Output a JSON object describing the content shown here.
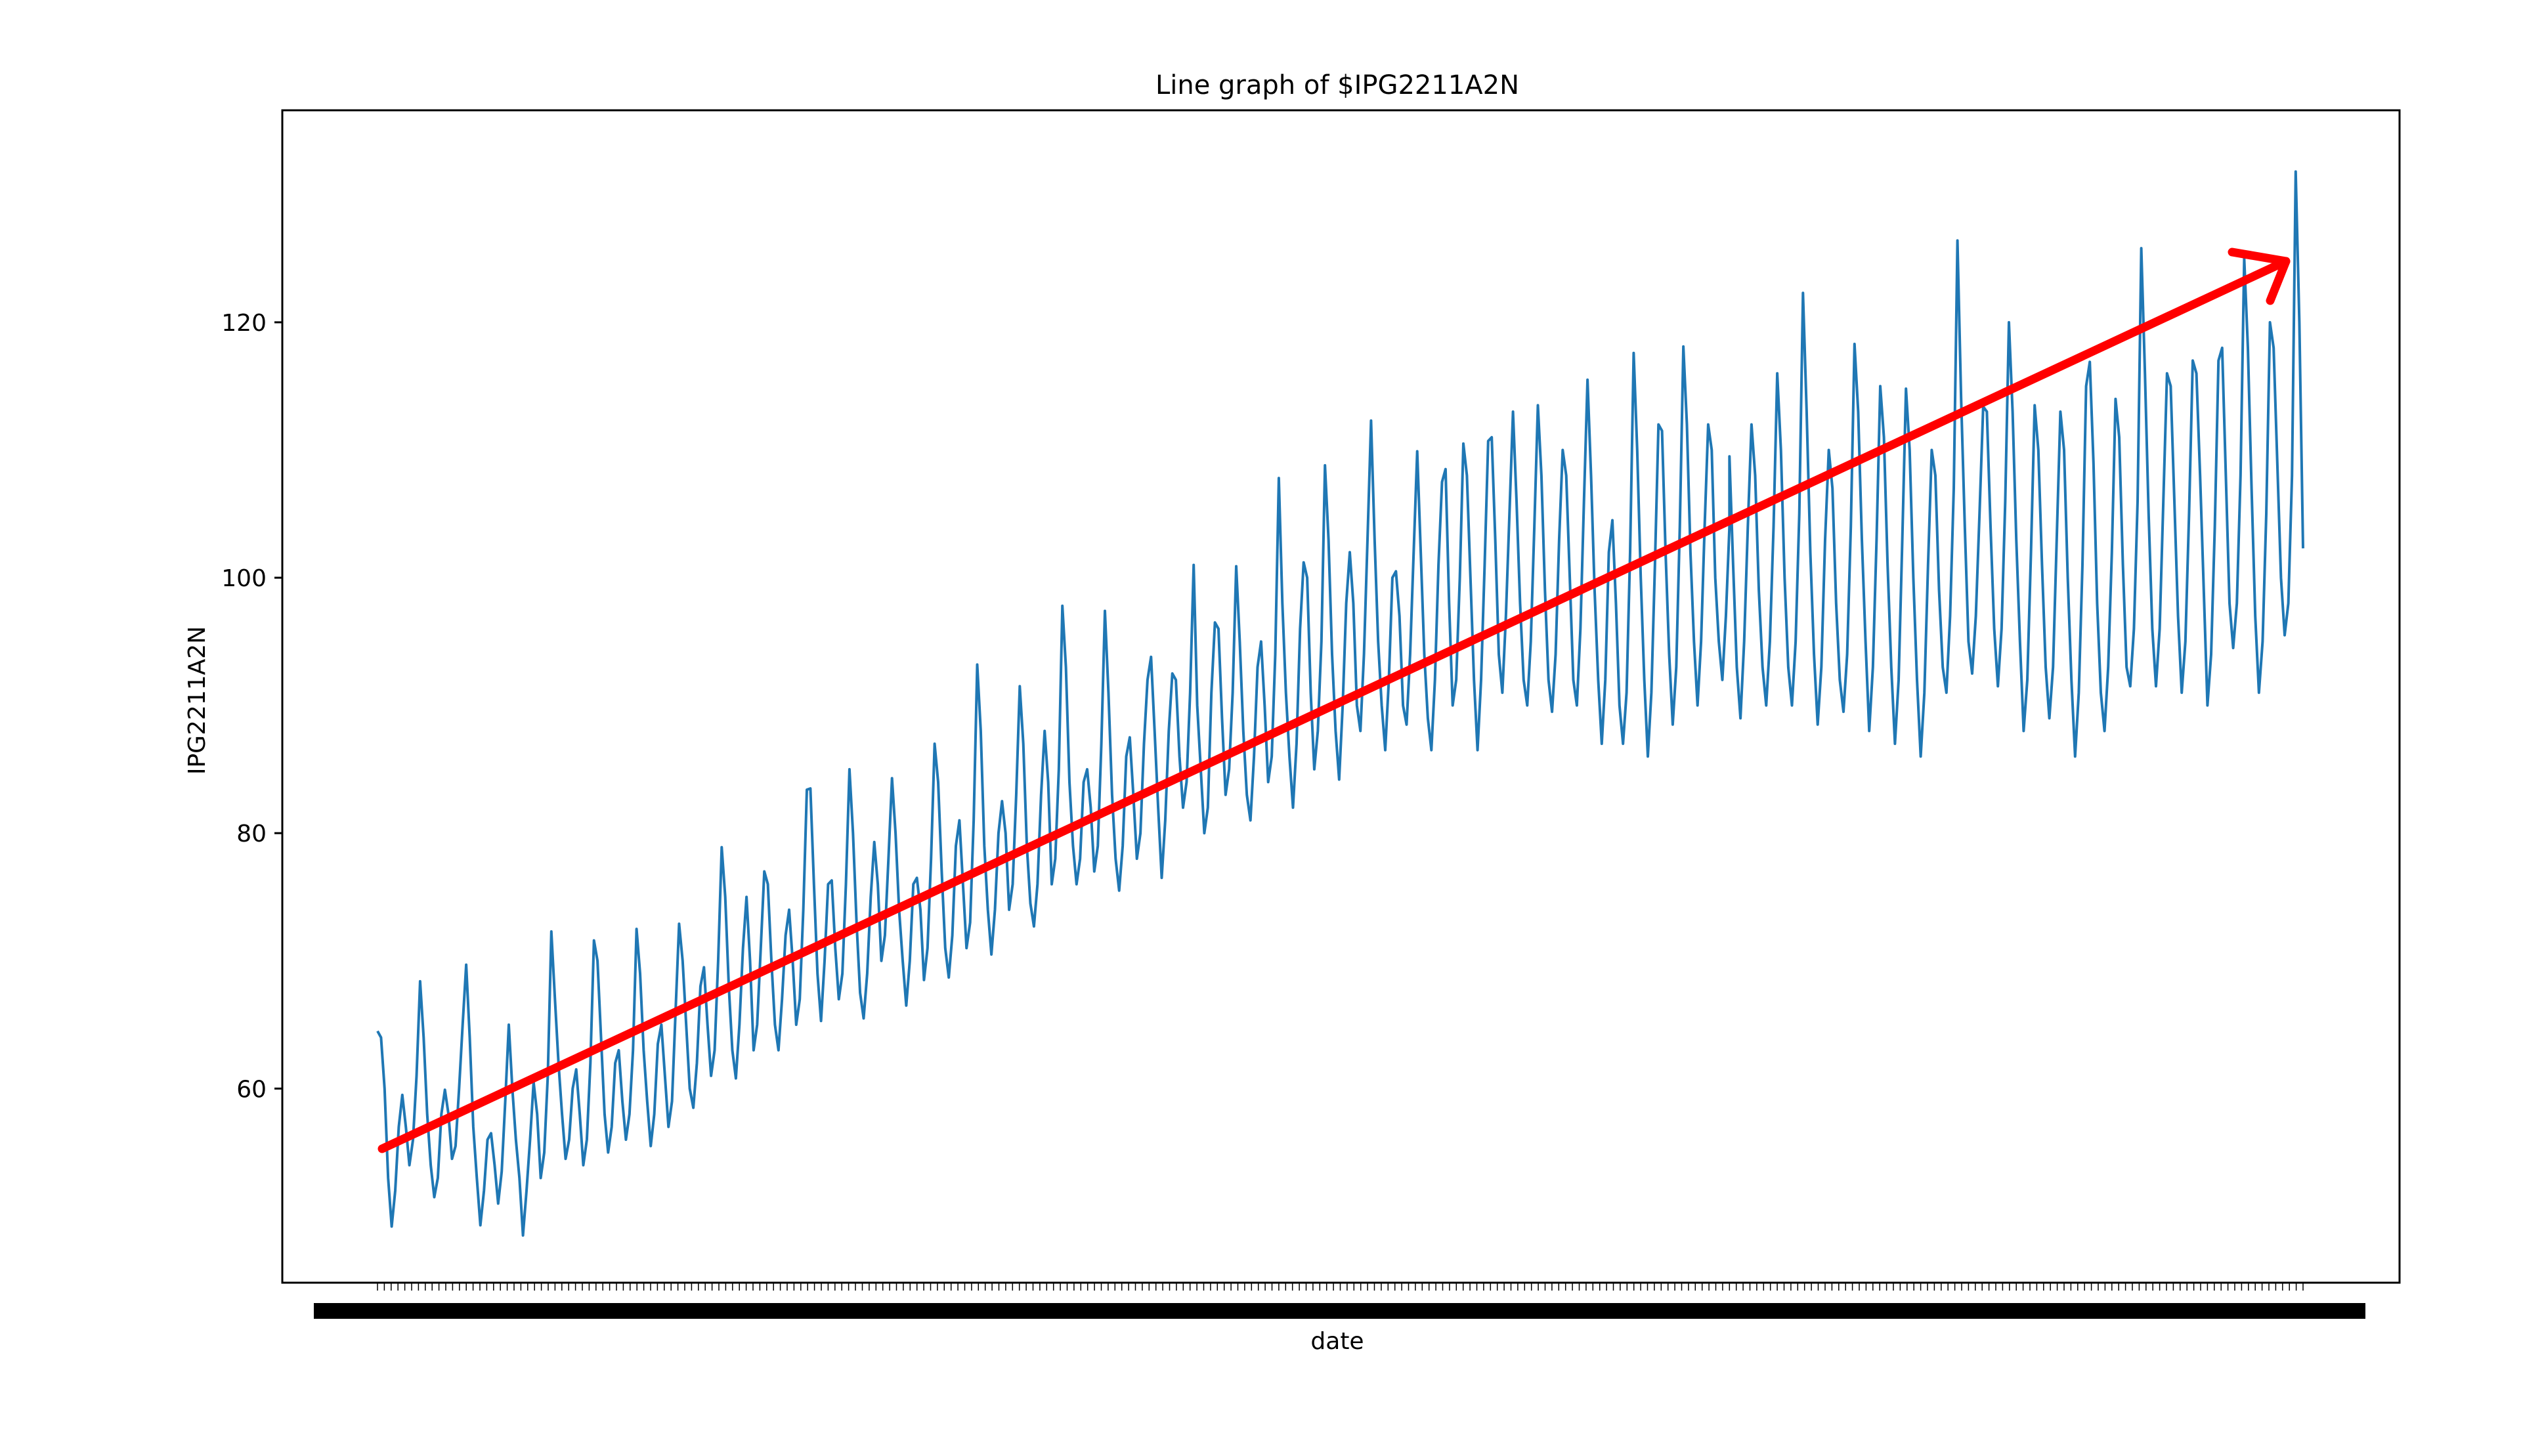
{
  "chart_data": {
    "type": "line",
    "title": "Line graph of $IPG2211A2N",
    "xlabel": "date",
    "ylabel": "IPG2211A2N",
    "ylim": [
      44.8,
      136.6
    ],
    "y_ticks": [
      60,
      80,
      100,
      120
    ],
    "y_tick_labels": [
      "60",
      "80",
      "100",
      "120"
    ],
    "grid": false,
    "legend": "none",
    "x_tick_labels_note": "dense overlapping monthly date labels (illegible)",
    "series_color": "#1f77b4",
    "trend_arrow_color": "#ff0000",
    "series": [
      {
        "x_index_start": 0,
        "x_index_end": 396,
        "values": [
          64.5,
          64.0,
          60.0,
          53.0,
          49.2,
          52.0,
          57.0,
          59.5,
          57.0,
          54.0,
          56.0,
          61.0,
          68.4,
          64.0,
          58.0,
          54.0,
          51.5,
          53.0,
          58.0,
          59.9,
          58.0,
          54.5,
          55.5,
          60.0,
          65.0,
          69.7,
          64.0,
          57.0,
          53.0,
          49.3,
          52.0,
          56.0,
          56.5,
          54.0,
          51.0,
          53.5,
          59.0,
          65.0,
          60.0,
          56.0,
          53.0,
          48.5,
          52.0,
          56.0,
          60.5,
          58.0,
          53.0,
          55.0,
          61.0,
          72.3,
          67.0,
          62.0,
          58.0,
          54.5,
          56.0,
          60.0,
          61.5,
          58.0,
          54.0,
          56.0,
          62.0,
          71.6,
          70.0,
          64.0,
          58.0,
          55.0,
          57.0,
          62.0,
          63.0,
          59.0,
          56.0,
          58.0,
          63.0,
          72.5,
          69.0,
          63.0,
          59.0,
          55.5,
          58.0,
          63.5,
          65.0,
          61.0,
          57.0,
          59.0,
          66.0,
          72.9,
          70.0,
          65.0,
          60.0,
          58.5,
          62.0,
          68.0,
          69.5,
          65.0,
          61.0,
          63.0,
          70.0,
          78.9,
          75.0,
          68.0,
          63.0,
          60.8,
          65.0,
          71.0,
          75.0,
          70.0,
          63.0,
          65.0,
          71.0,
          77.0,
          76.0,
          70.0,
          65.0,
          63.0,
          67.0,
          72.0,
          74.0,
          70.0,
          65.0,
          67.0,
          74.0,
          83.4,
          83.5,
          76.0,
          69.0,
          65.3,
          70.0,
          76.0,
          76.3,
          71.0,
          67.0,
          69.0,
          76.0,
          85.0,
          80.0,
          73.0,
          67.5,
          65.5,
          69.0,
          75.0,
          79.3,
          76.0,
          70.0,
          72.0,
          78.0,
          84.3,
          80.0,
          74.0,
          70.0,
          66.5,
          70.0,
          76.0,
          76.5,
          74.0,
          68.5,
          71.0,
          78.0,
          87.0,
          84.0,
          77.0,
          71.0,
          68.7,
          72.0,
          79.0,
          81.0,
          76.0,
          71.0,
          73.0,
          81.0,
          93.2,
          88.0,
          79.0,
          74.0,
          70.5,
          74.0,
          80.0,
          82.5,
          80.0,
          74.0,
          76.0,
          83.0,
          91.5,
          87.0,
          79.0,
          74.5,
          72.7,
          76.0,
          83.0,
          88.0,
          84.0,
          76.0,
          78.0,
          85.0,
          97.8,
          93.0,
          84.0,
          79.0,
          76.0,
          78.0,
          84.0,
          85.0,
          82.0,
          77.0,
          79.0,
          87.0,
          97.4,
          91.0,
          83.0,
          78.0,
          75.5,
          79.0,
          86.0,
          87.5,
          83.0,
          78.0,
          80.0,
          87.0,
          92.0,
          93.8,
          88.0,
          82.0,
          76.5,
          81.0,
          88.0,
          92.5,
          92.0,
          86.0,
          82.0,
          84.0,
          91.0,
          101.0,
          90.0,
          85.0,
          80.0,
          82.0,
          91.0,
          96.5,
          96.0,
          89.0,
          83.0,
          85.0,
          91.0,
          100.9,
          95.0,
          88.0,
          83.0,
          81.0,
          86.0,
          93.0,
          95.0,
          90.0,
          84.0,
          86.0,
          94.0,
          107.8,
          98.0,
          91.0,
          86.0,
          82.0,
          87.0,
          96.0,
          101.2,
          100.0,
          91.0,
          85.0,
          88.0,
          95.0,
          108.8,
          103.0,
          94.0,
          88.0,
          84.2,
          90.0,
          98.0,
          102.0,
          98.0,
          90.0,
          88.0,
          94.0,
          103.0,
          112.3,
          103.0,
          95.0,
          90.0,
          86.5,
          92.0,
          100.0,
          100.5,
          97.0,
          90.0,
          88.5,
          94.0,
          102.0,
          109.9,
          102.0,
          94.0,
          89.0,
          86.5,
          92.0,
          101.0,
          107.5,
          108.5,
          98.0,
          90.0,
          92.0,
          100.0,
          110.5,
          108.0,
          100.0,
          92.0,
          86.5,
          92.0,
          101.0,
          110.7,
          111.0,
          103.0,
          94.0,
          91.0,
          97.0,
          105.0,
          113.0,
          106.0,
          98.0,
          92.0,
          90.0,
          95.0,
          104.0,
          113.5,
          108.0,
          99.0,
          92.0,
          89.5,
          94.0,
          103.0,
          110.0,
          108.0,
          100.0,
          92.0,
          90.0,
          96.0,
          106.0,
          115.5,
          108.0,
          99.0,
          92.0,
          87.0,
          92.0,
          102.0,
          104.5,
          98.0,
          90.0,
          87.0,
          91.0,
          102.0,
          117.6,
          110.0,
          100.0,
          92.0,
          86.0,
          91.0,
          101.0,
          112.0,
          111.5,
          102.0,
          94.0,
          88.5,
          93.0,
          104.0,
          118.1,
          112.0,
          102.0,
          95.0,
          90.0,
          95.0,
          104.0,
          112.0,
          110.0,
          100.0,
          95.0,
          92.0,
          97.0,
          104.0
        ]
      },
      {
        "x_index_start": 396,
        "x_index_end": 564,
        "values": [
          109.5,
          101.0,
          93.0,
          89.0,
          95.0,
          104.0,
          112.0,
          108.0,
          99.0,
          93.0,
          90.0,
          95.0,
          104.0,
          116.0,
          110.0,
          100.0,
          93.0,
          90.0,
          95.0,
          105.0,
          122.3,
          113.0,
          102.0,
          94.0,
          88.5,
          93.0,
          103.0,
          110.0,
          107.0,
          98.0,
          92.0,
          89.5,
          94.0,
          104.0,
          118.3,
          113.0,
          103.0,
          95.0,
          88.0,
          93.0,
          103.0,
          115.0,
          111.0,
          101.0,
          93.0,
          87.0,
          92.0,
          103.0,
          114.8,
          110.0,
          100.0,
          92.0,
          86.0,
          91.0,
          101.0,
          110.0,
          108.0,
          99.0,
          93.0,
          91.0,
          97.0,
          107.0,
          126.4,
          114.0,
          104.0,
          95.0,
          92.5,
          97.0,
          105.0,
          113.4,
          113.0,
          104.0,
          96.0,
          91.5,
          96.0,
          106.0,
          120.0,
          113.0,
          103.0,
          95.0,
          88.0,
          92.0,
          102.0,
          113.5,
          110.0,
          101.0,
          93.0,
          89.0,
          93.0,
          103.0,
          113.0,
          110.0,
          100.0,
          92.0,
          86.0,
          91.0,
          101.0,
          115.0,
          116.9,
          109.0,
          98.0,
          91.0,
          88.0,
          93.0,
          102.0,
          114.0,
          111.0,
          101.0,
          93.0,
          91.5,
          96.0,
          106.0,
          125.8,
          116.0,
          105.0,
          96.0,
          91.5,
          96.0,
          106.0,
          116.0,
          115.0,
          106.0,
          97.0,
          91.0,
          95.0,
          105.0,
          117.0,
          116.0,
          108.0,
          99.0,
          90.0,
          94.0,
          104.0,
          117.0,
          118.0,
          108.0,
          98.0,
          94.5,
          98.0,
          108.0,
          125.0,
          118.0,
          107.0,
          97.0,
          91.0,
          95.0,
          105.0,
          120.0,
          118.0,
          109.0,
          100.0,
          95.5,
          98.0,
          108.0,
          131.8,
          120.0,
          102.3
        ]
      }
    ]
  }
}
